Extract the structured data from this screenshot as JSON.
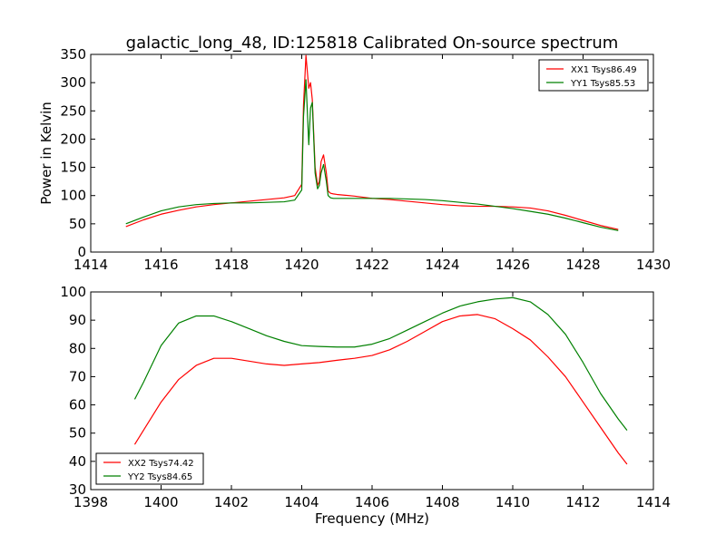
{
  "title": "galactic_long_48, ID:125818 Calibrated On-source spectrum",
  "colors": {
    "xx": "#ff0000",
    "yy": "#008000"
  },
  "chart_data": [
    {
      "type": "line",
      "ylabel": "Power in Kelvin",
      "xlabel": "",
      "xlim": [
        1414,
        1430
      ],
      "ylim": [
        0,
        350
      ],
      "xticks": [
        "1414",
        "1416",
        "1418",
        "1420",
        "1422",
        "1424",
        "1426",
        "1428",
        "1430"
      ],
      "yticks": [
        "0",
        "50",
        "100",
        "150",
        "200",
        "250",
        "300",
        "350"
      ],
      "legend_position": "top-right",
      "series": [
        {
          "name": "XX1 Tsys86.49",
          "color": "#ff0000",
          "x": [
            1415.0,
            1415.5,
            1416.0,
            1416.5,
            1417.0,
            1417.5,
            1418.0,
            1418.5,
            1419.0,
            1419.5,
            1419.8,
            1420.0,
            1420.05,
            1420.12,
            1420.2,
            1420.25,
            1420.3,
            1420.38,
            1420.45,
            1420.5,
            1420.55,
            1420.62,
            1420.7,
            1420.75,
            1420.82,
            1420.9,
            1421.0,
            1421.5,
            1422.0,
            1422.5,
            1423.0,
            1423.5,
            1424.0,
            1424.5,
            1425.0,
            1425.5,
            1426.0,
            1426.5,
            1427.0,
            1427.5,
            1428.0,
            1428.5,
            1429.0
          ],
          "y": [
            45,
            57,
            67,
            74,
            80,
            84,
            87,
            90,
            93,
            96,
            100,
            120,
            260,
            348,
            290,
            300,
            270,
            150,
            118,
            125,
            160,
            172,
            140,
            108,
            104,
            103,
            102,
            99,
            95,
            93,
            90,
            87,
            84,
            82,
            81,
            81,
            80,
            78,
            73,
            65,
            56,
            47,
            40
          ]
        },
        {
          "name": "YY1 Tsys85.53",
          "color": "#008000",
          "x": [
            1415.0,
            1415.5,
            1416.0,
            1416.5,
            1417.0,
            1417.5,
            1418.0,
            1418.5,
            1419.0,
            1419.5,
            1419.8,
            1420.0,
            1420.05,
            1420.12,
            1420.2,
            1420.25,
            1420.3,
            1420.38,
            1420.45,
            1420.5,
            1420.55,
            1420.62,
            1420.7,
            1420.75,
            1420.82,
            1420.9,
            1421.0,
            1421.5,
            1422.0,
            1422.5,
            1423.0,
            1423.5,
            1424.0,
            1424.5,
            1425.0,
            1425.5,
            1426.0,
            1426.5,
            1427.0,
            1427.5,
            1428.0,
            1428.5,
            1429.0
          ],
          "y": [
            50,
            62,
            73,
            80,
            84,
            86,
            87,
            87,
            88,
            89,
            92,
            110,
            240,
            305,
            190,
            255,
            265,
            140,
            112,
            118,
            140,
            155,
            125,
            100,
            96,
            95,
            95,
            95,
            95,
            95,
            94,
            93,
            91,
            88,
            85,
            81,
            77,
            72,
            67,
            60,
            52,
            44,
            38
          ]
        }
      ]
    },
    {
      "type": "line",
      "ylabel": "",
      "xlabel": "Frequency (MHz)",
      "xlim": [
        1398,
        1414
      ],
      "ylim": [
        30,
        100
      ],
      "xticks": [
        "1398",
        "1400",
        "1402",
        "1404",
        "1406",
        "1408",
        "1410",
        "1412",
        "1414"
      ],
      "yticks": [
        "30",
        "40",
        "50",
        "60",
        "70",
        "80",
        "90",
        "100"
      ],
      "legend_position": "bottom-left",
      "series": [
        {
          "name": "XX2 Tsys74.42",
          "color": "#ff0000",
          "x": [
            1399.25,
            1399.5,
            1400.0,
            1400.5,
            1401.0,
            1401.5,
            1402.0,
            1402.5,
            1403.0,
            1403.5,
            1404.0,
            1404.5,
            1405.0,
            1405.5,
            1406.0,
            1406.5,
            1407.0,
            1407.5,
            1408.0,
            1408.5,
            1409.0,
            1409.5,
            1410.0,
            1410.5,
            1411.0,
            1411.5,
            1412.0,
            1412.5,
            1413.0,
            1413.25
          ],
          "y": [
            46,
            51,
            61,
            69,
            74,
            76.5,
            76.5,
            75.5,
            74.5,
            74,
            74.5,
            75,
            75.8,
            76.5,
            77.5,
            79.5,
            82.5,
            86,
            89.5,
            91.5,
            92,
            90.5,
            87,
            83,
            77,
            70,
            61,
            52,
            43,
            39
          ]
        },
        {
          "name": "YY2 Tsys84.65",
          "color": "#008000",
          "x": [
            1399.25,
            1399.5,
            1400.0,
            1400.5,
            1401.0,
            1401.5,
            1402.0,
            1402.5,
            1403.0,
            1403.5,
            1404.0,
            1404.5,
            1405.0,
            1405.5,
            1406.0,
            1406.5,
            1407.0,
            1407.5,
            1408.0,
            1408.5,
            1409.0,
            1409.5,
            1410.0,
            1410.5,
            1411.0,
            1411.5,
            1412.0,
            1412.5,
            1413.0,
            1413.25
          ],
          "y": [
            62,
            68,
            81,
            89,
            91.5,
            91.5,
            89.5,
            87,
            84.5,
            82.5,
            81,
            80.7,
            80.5,
            80.5,
            81.5,
            83.5,
            86.5,
            89.5,
            92.5,
            95,
            96.5,
            97.5,
            98,
            96.5,
            92,
            85,
            75,
            64,
            55,
            51
          ]
        }
      ]
    }
  ]
}
